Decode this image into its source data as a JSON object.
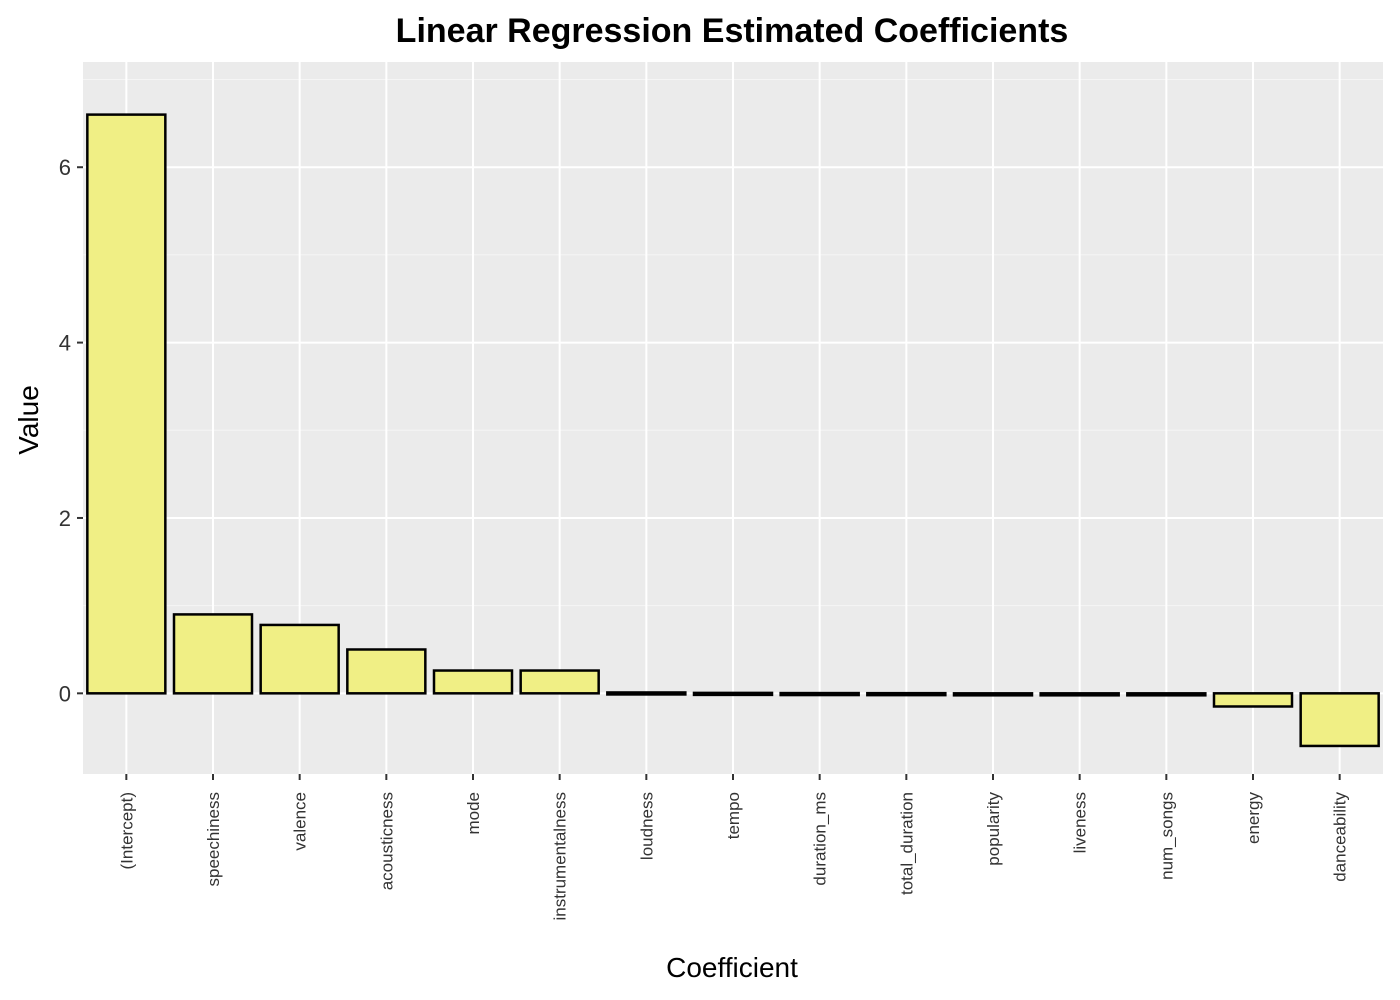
{
  "chart_data": {
    "type": "bar",
    "title": "Linear Regression Estimated Coefficients",
    "xlabel": "Coefficient",
    "ylabel": "Value",
    "categories": [
      "(Intercept)",
      "speechiness",
      "valence",
      "acousticness",
      "mode",
      "instrumentalness",
      "loudness",
      "tempo",
      "duration_ms",
      "total_duration",
      "popularity",
      "liveness",
      "num_songs",
      "energy",
      "danceability"
    ],
    "values": [
      6.6,
      0.9,
      0.78,
      0.5,
      0.26,
      0.26,
      0.01,
      0.005,
      0.003,
      0.002,
      -0.01,
      -0.015,
      -0.02,
      -0.15,
      -0.6
    ],
    "ylim": [
      -0.92,
      7.2
    ],
    "yticks": [
      0,
      2,
      4,
      6
    ],
    "grid": true,
    "colors": {
      "bar_fill": "#f0ef85",
      "bar_stroke": "#000000",
      "panel_background": "#ebebeb",
      "grid_major": "#ffffff",
      "grid_minor": "#f5f5f5"
    }
  }
}
